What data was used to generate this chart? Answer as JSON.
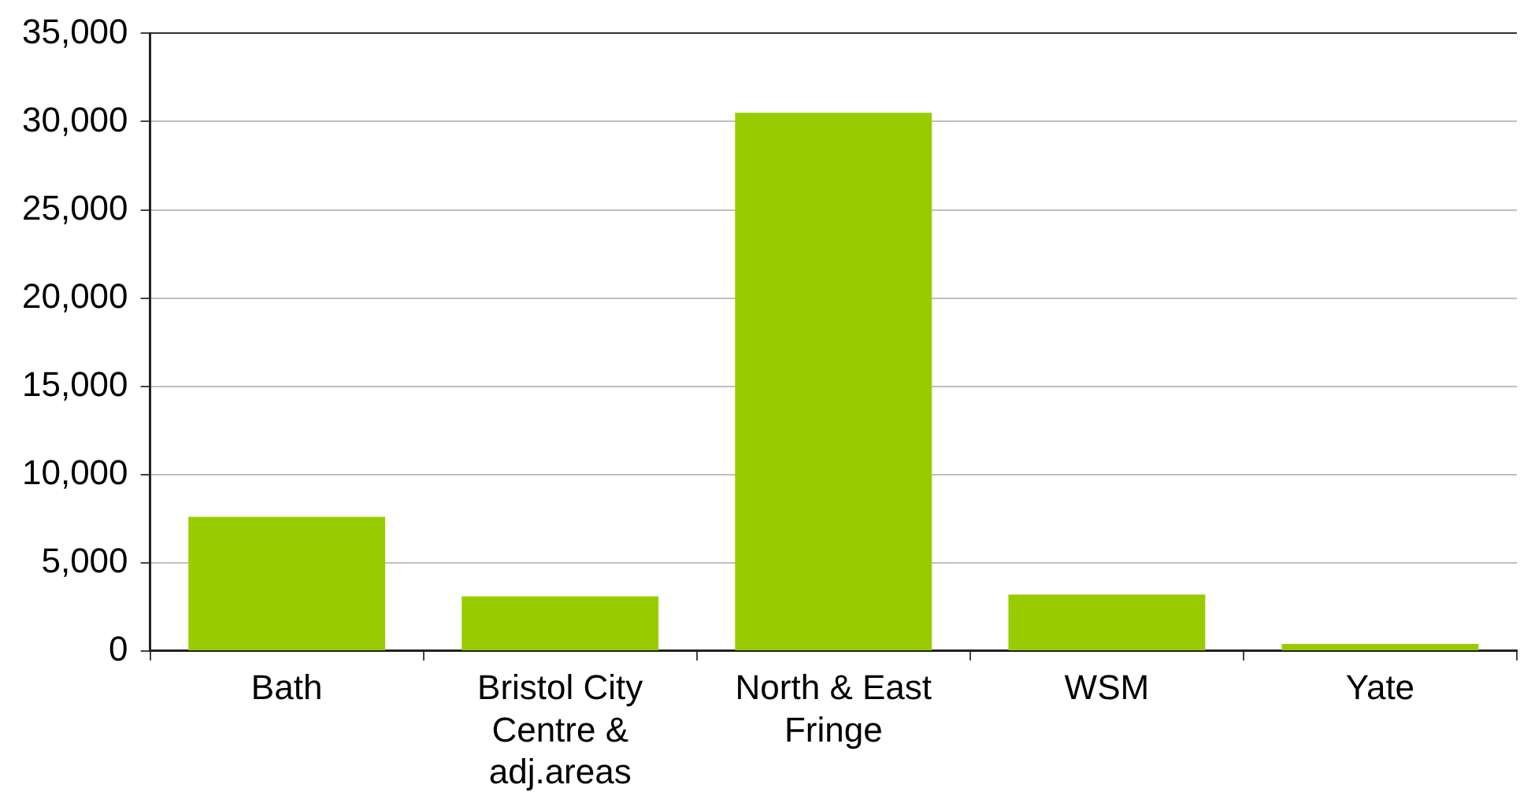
{
  "chart_data": {
    "type": "bar",
    "categories": [
      "Bath",
      "Bristol City Centre & adj.areas",
      "North & East Fringe",
      "WSM",
      "Yate"
    ],
    "values": [
      7600,
      3100,
      30500,
      3200,
      400
    ],
    "color": "#99cc00",
    "ylim": [
      0,
      35000
    ],
    "yticks": [
      0,
      {
        "value": 5000,
        "label": "5,000"
      },
      {
        "value": 10000,
        "label": "10,000"
      },
      {
        "value": 15000,
        "label": "15,000"
      },
      {
        "value": 20000,
        "label": "20,000"
      },
      {
        "value": 25000,
        "label": "25,000"
      },
      {
        "value": 30000,
        "label": "30,000"
      },
      {
        "value": 35000,
        "label": "35,000"
      }
    ],
    "grid": "y"
  }
}
